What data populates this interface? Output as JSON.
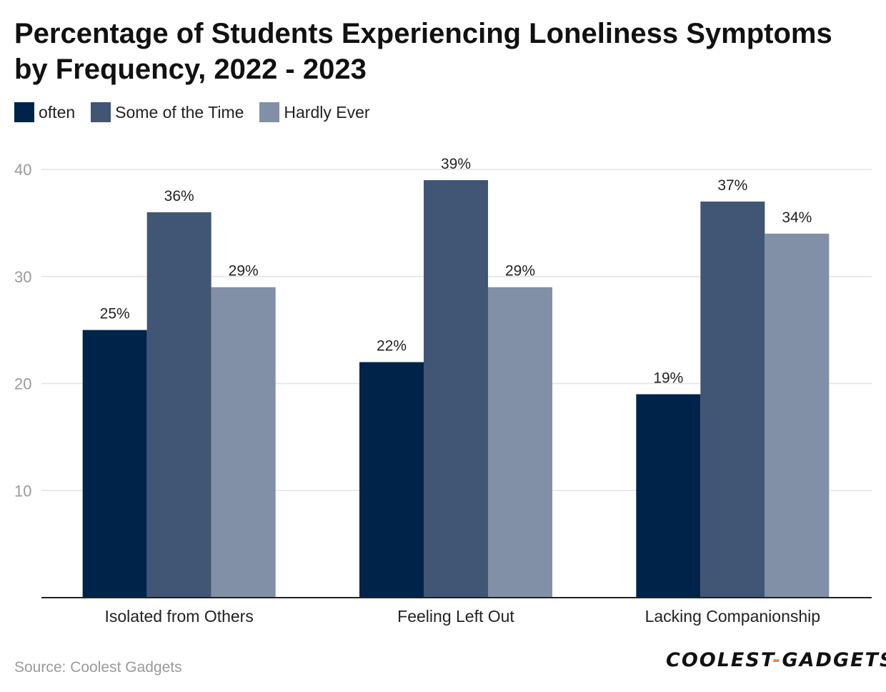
{
  "title": "Percentage of Students Experiencing Loneliness Symptoms by Frequency, 2022 - 2023",
  "source": "Source: Coolest Gadgets",
  "logo": {
    "part1": "COOLEST",
    "dash": "-",
    "part2": "GADGETS"
  },
  "colors": {
    "often": "#00234a",
    "some_of_the_time": "#415574",
    "hardly_ever": "#8190a7",
    "grid": "#e2e2e2",
    "axis": "#222222"
  },
  "chart_data": {
    "type": "bar",
    "title": "Percentage of Students Experiencing Loneliness Symptoms by Frequency, 2022 - 2023",
    "xlabel": "",
    "ylabel": "",
    "ylim": [
      0,
      40
    ],
    "yticks": [
      10,
      20,
      30,
      40
    ],
    "grid": true,
    "legend_position": "top-left",
    "categories": [
      "Isolated from Others",
      "Feeling Left Out",
      "Lacking Companionship"
    ],
    "series": [
      {
        "name": "often",
        "color": "#00234a",
        "values": [
          25,
          22,
          19
        ],
        "labels": [
          "25%",
          "22%",
          "19%"
        ]
      },
      {
        "name": "Some of the Time",
        "color": "#415574",
        "values": [
          36,
          39,
          37
        ],
        "labels": [
          "36%",
          "39%",
          "37%"
        ]
      },
      {
        "name": "Hardly Ever",
        "color": "#8190a7",
        "values": [
          29,
          29,
          34
        ],
        "labels": [
          "29%",
          "29%",
          "34%"
        ]
      }
    ]
  }
}
